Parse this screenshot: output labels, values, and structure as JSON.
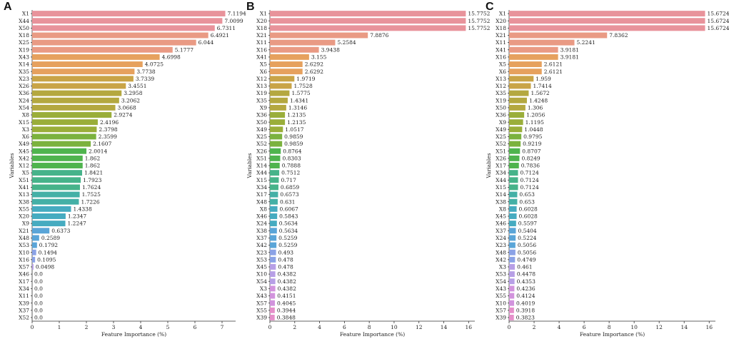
{
  "chart_data": [
    {
      "type": "bar",
      "orientation": "horizontal",
      "panel_label": "A",
      "ylabel": "Variables",
      "xlabel": "Feature Importance (%)",
      "xlim": [
        0,
        7.5
      ],
      "xticks": [
        "0",
        "1",
        "2",
        "3",
        "4",
        "5",
        "6",
        "7"
      ],
      "categories": [
        "X1",
        "X44",
        "X50",
        "X18",
        "X25",
        "X19",
        "X43",
        "X14",
        "X35",
        "X23",
        "X26",
        "X36",
        "X24",
        "X54",
        "X8",
        "X15",
        "X3",
        "X6",
        "X49",
        "X45",
        "X42",
        "X12",
        "X5",
        "X51",
        "X41",
        "X13",
        "X38",
        "X55",
        "X20",
        "X9",
        "X21",
        "X48",
        "X53",
        "X10",
        "X16",
        "X57",
        "X46",
        "X17",
        "X34",
        "X11",
        "X39",
        "X37",
        "X52"
      ],
      "values": [
        7.1194,
        7.0099,
        6.7311,
        6.4921,
        6.044,
        5.1777,
        4.6998,
        4.0725,
        3.7738,
        3.7339,
        3.4551,
        3.2958,
        3.2062,
        3.0668,
        2.9274,
        2.4196,
        2.3798,
        2.3599,
        2.1607,
        2.0014,
        1.862,
        1.862,
        1.8421,
        1.7923,
        1.7624,
        1.7525,
        1.7226,
        1.4338,
        1.2347,
        1.2247,
        0.6373,
        0.2589,
        0.1792,
        0.1494,
        0.1095,
        0.0498,
        0.0,
        0.0,
        0.0,
        0.0,
        0.0,
        0.0,
        0.0
      ],
      "value_labels": [
        "7.1194",
        "7.0099",
        "6.7311",
        "6.4921",
        "6.044",
        "5.1777",
        "4.6998",
        "4.0725",
        "3.7738",
        "3.7339",
        "3.4551",
        "3.2958",
        "3.2062",
        "3.0668",
        "2.9274",
        "2.4196",
        "2.3798",
        "2.3599",
        "2.1607",
        "2.0014",
        "1.862",
        "1.862",
        "1.8421",
        "1.7923",
        "1.7624",
        "1.7525",
        "1.7226",
        "1.4338",
        "1.2347",
        "1.2247",
        "0.6373",
        "0.2589",
        "0.1792",
        "0.1494",
        "0.1095",
        "0.0498",
        "0.0",
        "0.0",
        "0.0",
        "0.0",
        "0.0",
        "0.0",
        "0.0"
      ]
    },
    {
      "type": "bar",
      "orientation": "horizontal",
      "panel_label": "B",
      "ylabel": "Variables",
      "xlabel": "Feature Importance (%)",
      "xlim": [
        0,
        16.5
      ],
      "xticks": [
        "0",
        "2",
        "4",
        "6",
        "8",
        "10",
        "12",
        "14",
        "16"
      ],
      "categories": [
        "X1",
        "X20",
        "X18",
        "X21",
        "X11",
        "X16",
        "X41",
        "X5",
        "X6",
        "X12",
        "X13",
        "X19",
        "X35",
        "X9",
        "X36",
        "X50",
        "X49",
        "X25",
        "X52",
        "X26",
        "X51",
        "X14",
        "X44",
        "X15",
        "X34",
        "X17",
        "X48",
        "X8",
        "X46",
        "X24",
        "X38",
        "X37",
        "X42",
        "X23",
        "X53",
        "X45",
        "X10",
        "X54",
        "X3",
        "X43",
        "X57",
        "X55",
        "X39"
      ],
      "values": [
        15.7752,
        15.7752,
        15.7752,
        7.8876,
        5.2584,
        3.9438,
        3.155,
        2.6292,
        2.6292,
        1.9719,
        1.7528,
        1.5775,
        1.4341,
        1.3146,
        1.2135,
        1.2135,
        1.0517,
        0.9859,
        0.9859,
        0.8764,
        0.8303,
        0.7888,
        0.7512,
        0.717,
        0.6859,
        0.6573,
        0.631,
        0.6067,
        0.5843,
        0.5634,
        0.5634,
        0.5259,
        0.5259,
        0.493,
        0.478,
        0.478,
        0.4382,
        0.4382,
        0.4382,
        0.4151,
        0.4045,
        0.3944,
        0.3848
      ],
      "value_labels": [
        "15.7752",
        "15.7752",
        "15.7752",
        "7.8876",
        "5.2584",
        "3.9438",
        "3.155",
        "2.6292",
        "2.6292",
        "1.9719",
        "1.7528",
        "1.5775",
        "1.4341",
        "1.3146",
        "1.2135",
        "1.2135",
        "1.0517",
        "0.9859",
        "0.9859",
        "0.8764",
        "0.8303",
        "0.7888",
        "0.7512",
        "0.717",
        "0.6859",
        "0.6573",
        "0.631",
        "0.6067",
        "0.5843",
        "0.5634",
        "0.5634",
        "0.5259",
        "0.5259",
        "0.493",
        "0.478",
        "0.478",
        "0.4382",
        "0.4382",
        "0.4382",
        "0.4151",
        "0.4045",
        "0.3944",
        "0.3848"
      ]
    },
    {
      "type": "bar",
      "orientation": "horizontal",
      "panel_label": "C",
      "ylabel": "Variables",
      "xlabel": "Feature Importance (%)",
      "xlim": [
        0,
        16.5
      ],
      "xticks": [
        "0",
        "2",
        "4",
        "6",
        "8",
        "10",
        "12",
        "14",
        "16"
      ],
      "categories": [
        "X1",
        "X20",
        "X18",
        "X21",
        "X11",
        "X41",
        "X16",
        "X5",
        "X6",
        "X13",
        "X12",
        "X35",
        "X19",
        "X50",
        "X36",
        "X9",
        "X49",
        "X25",
        "X52",
        "X51",
        "X26",
        "X17",
        "X34",
        "X44",
        "X15",
        "X14",
        "X38",
        "X8",
        "X45",
        "X46",
        "X37",
        "X24",
        "X23",
        "X48",
        "X42",
        "X3",
        "X53",
        "X54",
        "X43",
        "X55",
        "X10",
        "X57",
        "X39"
      ],
      "values": [
        15.6724,
        15.6724,
        15.6724,
        7.8362,
        5.2241,
        3.9181,
        3.9181,
        2.6121,
        2.6121,
        1.959,
        1.7414,
        1.5672,
        1.4248,
        1.306,
        1.2056,
        1.1195,
        1.0448,
        0.9795,
        0.9219,
        0.8707,
        0.8249,
        0.7836,
        0.7124,
        0.7124,
        0.7124,
        0.653,
        0.653,
        0.6028,
        0.6028,
        0.5597,
        0.5404,
        0.5224,
        0.5056,
        0.5056,
        0.4749,
        0.461,
        0.4478,
        0.4353,
        0.4236,
        0.4124,
        0.4019,
        0.3918,
        0.3823
      ],
      "value_labels": [
        "15.6724",
        "15.6724",
        "15.6724",
        "7.8362",
        "5.2241",
        "3.9181",
        "3.9181",
        "2.6121",
        "2.6121",
        "1.959",
        "1.7414",
        "1.5672",
        "1.4248",
        "1.306",
        "1.2056",
        "1.1195",
        "1.0448",
        "0.9795",
        "0.9219",
        "0.8707",
        "0.8249",
        "0.7836",
        "0.7124",
        "0.7124",
        "0.7124",
        "0.653",
        "0.653",
        "0.6028",
        "0.6028",
        "0.5597",
        "0.5404",
        "0.5224",
        "0.5056",
        "0.5056",
        "0.4749",
        "0.461",
        "0.4478",
        "0.4353",
        "0.4236",
        "0.4124",
        "0.4019",
        "0.3918",
        "0.3823"
      ]
    }
  ],
  "palette": [
    "#e8939b",
    "#e99a84",
    "#e6a15e",
    "#c9a447",
    "#b4a840",
    "#9aae3a",
    "#7bb23e",
    "#4fb44e",
    "#46b38a",
    "#44b0a6",
    "#46abc0",
    "#5aa5d8",
    "#8aa2e6",
    "#b79fe6",
    "#d293dd",
    "#e58fca"
  ]
}
